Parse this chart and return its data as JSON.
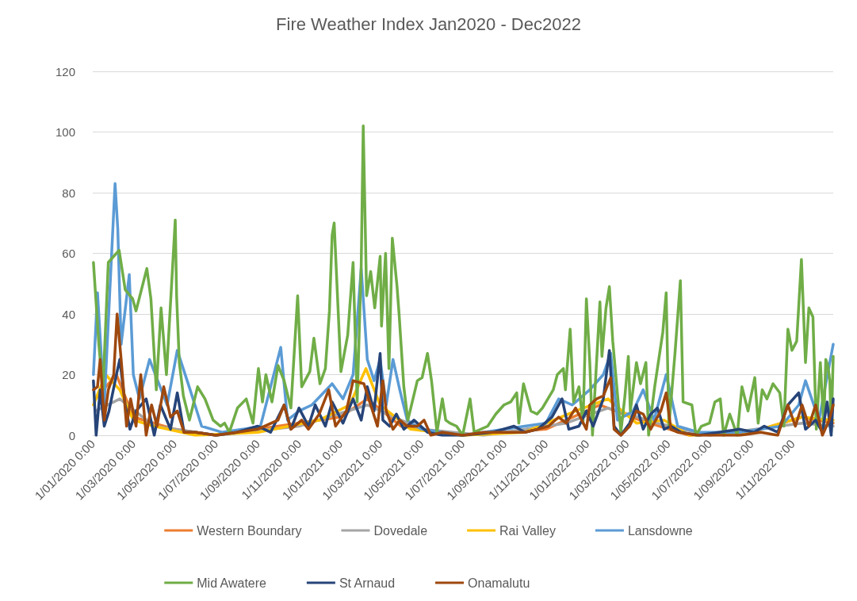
{
  "chart_data": {
    "type": "line",
    "title": "Fire Weather Index Jan2020 - Dec2022",
    "ylim": [
      0,
      120
    ],
    "yticks": [
      0,
      20,
      40,
      60,
      80,
      100,
      120
    ],
    "xlim": [
      "2020-01-01",
      "2022-12-31"
    ],
    "xticks": [
      {
        "value": "2020-01-01",
        "label": "1/01/2020 0:00"
      },
      {
        "value": "2020-03-01",
        "label": "1/03/2020 0:00"
      },
      {
        "value": "2020-05-01",
        "label": "1/05/2020 0:00"
      },
      {
        "value": "2020-07-01",
        "label": "1/07/2020 0:00"
      },
      {
        "value": "2020-09-01",
        "label": "1/09/2020 0:00"
      },
      {
        "value": "2020-11-01",
        "label": "1/11/2020 0:00"
      },
      {
        "value": "2021-01-01",
        "label": "1/01/2021 0:00"
      },
      {
        "value": "2021-03-01",
        "label": "1/03/2021 0:00"
      },
      {
        "value": "2021-05-01",
        "label": "1/05/2021 0:00"
      },
      {
        "value": "2021-07-01",
        "label": "1/07/2021 0:00"
      },
      {
        "value": "2021-09-01",
        "label": "1/09/2021 0:00"
      },
      {
        "value": "2021-11-01",
        "label": "1/11/2021 0:00"
      },
      {
        "value": "2022-01-01",
        "label": "1/01/2022 0:00"
      },
      {
        "value": "2022-03-01",
        "label": "1/03/2022 0:00"
      },
      {
        "value": "2022-05-01",
        "label": "1/05/2022 0:00"
      },
      {
        "value": "2022-07-01",
        "label": "1/07/2022 0:00"
      },
      {
        "value": "2022-09-01",
        "label": "1/09/2022 0:00"
      },
      {
        "value": "2022-11-01",
        "label": "1/11/2022 0:00"
      }
    ],
    "grid": "y",
    "legend": "bottom",
    "marker": "none",
    "series": [
      {
        "name": "Western Boundary",
        "color": "#ed7d31",
        "x": [
          "2020-01-05",
          "2020-02-05",
          "2020-03-01",
          "2020-05-01",
          "2020-07-01",
          "2020-10-01",
          "2021-01-01",
          "2021-02-10",
          "2021-04-01",
          "2021-07-01",
          "2021-11-01",
          "2022-01-20",
          "2022-03-20",
          "2022-06-01",
          "2022-09-01",
          "2022-11-15",
          "2022-12-31"
        ],
        "values": [
          12,
          20,
          6,
          2,
          0,
          3,
          6,
          12,
          3,
          0,
          2,
          10,
          5,
          0,
          1,
          6,
          4
        ]
      },
      {
        "name": "Dovedale",
        "color": "#a5a5a5",
        "x": [
          "2020-01-05",
          "2020-02-10",
          "2020-04-01",
          "2020-07-01",
          "2020-11-01",
          "2021-02-10",
          "2021-05-01",
          "2021-08-01",
          "2021-12-01",
          "2022-02-01",
          "2022-04-15",
          "2022-07-01",
          "2022-11-15",
          "2022-12-31"
        ],
        "values": [
          8,
          12,
          3,
          0,
          3,
          10,
          2,
          0,
          4,
          9,
          4,
          0,
          4,
          3
        ]
      },
      {
        "name": "Rai Valley",
        "color": "#ffc000",
        "x": [
          "2020-01-02",
          "2020-01-20",
          "2020-02-10",
          "2020-03-01",
          "2020-04-01",
          "2020-06-01",
          "2020-09-01",
          "2020-12-01",
          "2021-01-15",
          "2021-02-08",
          "2021-03-01",
          "2021-04-15",
          "2021-07-01",
          "2021-10-01",
          "2021-12-15",
          "2022-02-01",
          "2022-03-15",
          "2022-04-25",
          "2022-06-01",
          "2022-09-01",
          "2022-11-15",
          "2022-12-31"
        ],
        "values": [
          10,
          20,
          15,
          5,
          3,
          0,
          1,
          5,
          10,
          22,
          10,
          2,
          0,
          1,
          8,
          12,
          4,
          5,
          0,
          1,
          6,
          5
        ]
      },
      {
        "name": "Lansdowne",
        "color": "#5b9bd5",
        "x": [
          "2020-01-02",
          "2020-01-08",
          "2020-01-18",
          "2020-02-03",
          "2020-02-07",
          "2020-02-12",
          "2020-02-24",
          "2020-03-01",
          "2020-03-10",
          "2020-03-25",
          "2020-04-20",
          "2020-05-05",
          "2020-05-24",
          "2020-06-10",
          "2020-07-10",
          "2020-08-10",
          "2020-09-05",
          "2020-10-05",
          "2020-10-15",
          "2020-11-01",
          "2020-11-20",
          "2020-12-20",
          "2021-01-05",
          "2021-01-20",
          "2021-02-01",
          "2021-02-10",
          "2021-02-20",
          "2021-03-01",
          "2021-03-10",
          "2021-03-20",
          "2021-03-30",
          "2021-04-10",
          "2021-05-01",
          "2021-06-01",
          "2021-07-01",
          "2021-08-01",
          "2021-09-01",
          "2021-10-01",
          "2021-11-01",
          "2021-11-20",
          "2021-12-10",
          "2022-01-05",
          "2022-01-25",
          "2022-02-05",
          "2022-02-15",
          "2022-03-10",
          "2022-03-25",
          "2022-04-10",
          "2022-04-28",
          "2022-05-15",
          "2022-06-15",
          "2022-07-15",
          "2022-08-15",
          "2022-09-15",
          "2022-10-15",
          "2022-11-10",
          "2022-11-20",
          "2022-12-10",
          "2022-12-31"
        ],
        "values": [
          20,
          47,
          10,
          83,
          68,
          30,
          53,
          20,
          12,
          25,
          10,
          28,
          15,
          3,
          1,
          2,
          3,
          29,
          5,
          8,
          10,
          17,
          12,
          20,
          55,
          25,
          18,
          25,
          10,
          25,
          15,
          5,
          2,
          1,
          0,
          1,
          2,
          3,
          4,
          12,
          10,
          15,
          20,
          27,
          5,
          8,
          15,
          5,
          20,
          3,
          1,
          1,
          1,
          2,
          3,
          10,
          18,
          5,
          30
        ]
      },
      {
        "name": "Mid Awatere",
        "color": "#70ad47",
        "x": [
          "2020-01-02",
          "2020-01-10",
          "2020-01-16",
          "2020-01-24",
          "2020-02-09",
          "2020-02-18",
          "2020-02-29",
          "2020-03-05",
          "2020-03-21",
          "2020-03-27",
          "2020-04-04",
          "2020-04-11",
          "2020-04-19",
          "2020-05-02",
          "2020-05-04",
          "2020-05-08",
          "2020-05-14",
          "2020-05-23",
          "2020-06-04",
          "2020-06-15",
          "2020-06-27",
          "2020-07-08",
          "2020-07-14",
          "2020-07-21",
          "2020-08-02",
          "2020-08-15",
          "2020-08-25",
          "2020-09-02",
          "2020-09-08",
          "2020-09-13",
          "2020-09-22",
          "2020-10-01",
          "2020-10-10",
          "2020-10-20",
          "2020-10-30",
          "2020-11-05",
          "2020-11-17",
          "2020-11-23",
          "2020-12-02",
          "2020-12-10",
          "2020-12-16",
          "2020-12-20",
          "2020-12-23",
          "2021-01-02",
          "2021-01-12",
          "2021-01-20",
          "2021-01-26",
          "2021-02-01",
          "2021-02-04",
          "2021-02-09",
          "2021-02-15",
          "2021-02-21",
          "2021-03-01",
          "2021-03-03",
          "2021-03-09",
          "2021-03-14",
          "2021-03-19",
          "2021-03-26",
          "2021-03-29",
          "2021-04-05",
          "2021-04-11",
          "2021-04-25",
          "2021-05-02",
          "2021-05-10",
          "2021-05-16",
          "2021-05-24",
          "2021-06-01",
          "2021-06-06",
          "2021-06-12",
          "2021-06-22",
          "2021-07-01",
          "2021-07-12",
          "2021-07-18",
          "2021-08-07",
          "2021-08-19",
          "2021-08-31",
          "2021-09-10",
          "2021-09-19",
          "2021-09-22",
          "2021-09-29",
          "2021-10-10",
          "2021-10-19",
          "2021-10-27",
          "2021-11-04",
          "2021-11-12",
          "2021-11-18",
          "2021-11-27",
          "2021-11-30",
          "2021-12-07",
          "2021-12-12",
          "2021-12-20",
          "2021-12-26",
          "2021-12-31",
          "2022-01-05",
          "2022-01-09",
          "2022-01-20",
          "2022-01-23",
          "2022-01-29",
          "2022-02-03",
          "2022-02-08",
          "2022-02-20",
          "2022-02-26",
          "2022-03-03",
          "2022-03-06",
          "2022-03-15",
          "2022-03-21",
          "2022-03-29",
          "2022-04-02",
          "2022-04-11",
          "2022-04-23",
          "2022-04-28",
          "2022-05-02",
          "2022-05-11",
          "2022-05-19",
          "2022-05-23",
          "2022-06-05",
          "2022-06-11",
          "2022-06-19",
          "2022-07-01",
          "2022-07-09",
          "2022-07-17",
          "2022-07-22",
          "2022-07-31",
          "2022-08-11",
          "2022-08-18",
          "2022-08-27",
          "2022-09-06",
          "2022-09-11",
          "2022-09-17",
          "2022-09-24",
          "2022-10-03",
          "2022-10-13",
          "2022-10-19",
          "2022-10-25",
          "2022-10-31",
          "2022-11-07",
          "2022-11-14",
          "2022-11-20",
          "2022-11-25",
          "2022-12-01",
          "2022-12-06",
          "2022-12-12",
          "2022-12-17",
          "2022-12-20",
          "2022-12-23",
          "2022-12-26",
          "2022-12-28",
          "2022-12-31"
        ],
        "values": [
          57,
          30,
          15,
          57,
          61,
          48,
          45,
          41,
          55,
          45,
          15,
          42,
          20,
          71,
          46,
          24,
          13,
          5,
          16,
          12,
          5,
          3,
          4,
          1,
          9,
          12,
          4,
          22,
          11,
          20,
          11,
          23,
          18,
          9,
          46,
          16,
          21,
          32,
          17,
          22,
          41,
          66,
          70,
          21,
          33,
          57,
          11,
          56,
          102,
          46,
          54,
          42,
          59,
          36,
          60,
          22,
          65,
          49,
          40,
          16,
          5,
          18,
          19,
          27,
          18,
          1,
          12,
          5,
          4,
          3,
          0,
          12,
          1,
          3,
          7,
          10,
          11,
          14,
          4,
          17,
          8,
          7,
          9,
          12,
          15,
          20,
          22,
          15,
          35,
          11,
          16,
          4,
          45,
          24,
          0,
          44,
          26,
          42,
          49,
          31,
          1,
          13,
          26,
          8,
          24,
          17,
          24,
          0,
          16,
          34,
          47,
          3,
          27,
          51,
          11,
          10,
          0,
          3,
          4,
          11,
          12,
          0,
          7,
          0,
          16,
          8,
          19,
          4,
          15,
          12,
          17,
          14,
          3,
          35,
          28,
          31,
          58,
          24,
          42,
          39,
          2,
          24,
          3,
          25,
          23,
          18,
          1,
          26
        ]
      },
      {
        "name": "St Arnaud",
        "color": "#264478",
        "x": [
          "2020-01-02",
          "2020-01-06",
          "2020-01-12",
          "2020-01-18",
          "2020-01-25",
          "2020-02-05",
          "2020-02-10",
          "2020-02-18",
          "2020-02-25",
          "2020-03-05",
          "2020-03-20",
          "2020-04-01",
          "2020-04-10",
          "2020-04-25",
          "2020-05-05",
          "2020-05-15",
          "2020-06-01",
          "2020-07-01",
          "2020-08-01",
          "2020-09-01",
          "2020-09-20",
          "2020-10-10",
          "2020-10-20",
          "2020-11-01",
          "2020-11-15",
          "2020-11-25",
          "2020-12-10",
          "2020-12-20",
          "2021-01-05",
          "2021-01-20",
          "2021-02-01",
          "2021-02-10",
          "2021-02-20",
          "2021-03-01",
          "2021-03-05",
          "2021-03-15",
          "2021-03-25",
          "2021-04-05",
          "2021-04-20",
          "2021-05-10",
          "2021-06-01",
          "2021-07-01",
          "2021-08-15",
          "2021-09-15",
          "2021-10-01",
          "2021-10-20",
          "2021-11-10",
          "2021-11-25",
          "2021-12-05",
          "2021-12-20",
          "2021-12-31",
          "2022-01-10",
          "2022-01-25",
          "2022-02-03",
          "2022-02-10",
          "2022-02-20",
          "2022-03-05",
          "2022-03-15",
          "2022-03-25",
          "2022-04-05",
          "2022-04-15",
          "2022-04-25",
          "2022-05-05",
          "2022-05-20",
          "2022-06-15",
          "2022-07-15",
          "2022-08-15",
          "2022-09-05",
          "2022-09-20",
          "2022-10-10",
          "2022-10-25",
          "2022-11-10",
          "2022-11-20",
          "2022-12-05",
          "2022-12-15",
          "2022-12-22",
          "2022-12-28",
          "2022-12-31"
        ],
        "values": [
          18,
          0,
          15,
          3,
          8,
          20,
          25,
          10,
          2,
          8,
          12,
          0,
          10,
          2,
          14,
          1,
          1,
          0,
          1,
          3,
          1,
          10,
          2,
          9,
          3,
          10,
          3,
          11,
          4,
          12,
          5,
          16,
          8,
          27,
          5,
          3,
          7,
          2,
          5,
          1,
          0,
          0,
          1,
          3,
          1,
          2,
          6,
          12,
          2,
          3,
          8,
          3,
          12,
          28,
          3,
          0,
          4,
          10,
          2,
          7,
          9,
          2,
          3,
          1,
          0,
          1,
          2,
          1,
          3,
          1,
          10,
          14,
          2,
          5,
          1,
          11,
          0,
          12
        ]
      },
      {
        "name": "Onamalutu",
        "color": "#9e480e",
        "x": [
          "2020-01-02",
          "2020-01-08",
          "2020-01-12",
          "2020-01-18",
          "2020-01-24",
          "2020-02-01",
          "2020-02-06",
          "2020-02-12",
          "2020-02-20",
          "2020-02-26",
          "2020-03-05",
          "2020-03-12",
          "2020-03-20",
          "2020-03-28",
          "2020-04-05",
          "2020-04-15",
          "2020-04-25",
          "2020-05-05",
          "2020-05-15",
          "2020-06-01",
          "2020-07-01",
          "2020-08-01",
          "2020-09-01",
          "2020-10-01",
          "2020-10-10",
          "2020-10-20",
          "2020-11-05",
          "2020-11-15",
          "2020-12-01",
          "2020-12-15",
          "2020-12-25",
          "2021-01-10",
          "2021-01-20",
          "2021-02-05",
          "2021-02-15",
          "2021-02-25",
          "2021-03-05",
          "2021-03-10",
          "2021-03-20",
          "2021-03-30",
          "2021-04-10",
          "2021-04-25",
          "2021-05-05",
          "2021-05-15",
          "2021-06-01",
          "2021-07-01",
          "2021-08-01",
          "2021-09-01",
          "2021-10-01",
          "2021-10-20",
          "2021-11-05",
          "2021-11-20",
          "2021-12-01",
          "2021-12-15",
          "2021-12-31",
          "2022-01-05",
          "2022-01-15",
          "2022-01-25",
          "2022-02-05",
          "2022-02-10",
          "2022-02-20",
          "2022-03-05",
          "2022-03-15",
          "2022-03-25",
          "2022-04-05",
          "2022-04-20",
          "2022-04-28",
          "2022-05-05",
          "2022-05-15",
          "2022-06-15",
          "2022-07-15",
          "2022-08-15",
          "2022-09-15",
          "2022-10-10",
          "2022-10-25",
          "2022-11-05",
          "2022-11-15",
          "2022-11-25",
          "2022-12-05",
          "2022-12-15",
          "2022-12-25",
          "2022-12-31"
        ],
        "values": [
          15,
          16,
          25,
          5,
          15,
          20,
          40,
          25,
          3,
          12,
          3,
          20,
          0,
          10,
          3,
          16,
          6,
          8,
          1,
          1,
          0,
          1,
          2,
          5,
          10,
          2,
          5,
          2,
          7,
          15,
          3,
          8,
          18,
          17,
          10,
          3,
          18,
          8,
          2,
          5,
          3,
          3,
          5,
          0,
          1,
          0,
          1,
          1,
          1,
          2,
          3,
          6,
          4,
          9,
          2,
          10,
          12,
          13,
          19,
          2,
          0,
          3,
          8,
          7,
          2,
          8,
          14,
          2,
          1,
          0,
          0,
          0,
          1,
          0,
          10,
          3,
          10,
          3,
          10,
          0,
          5,
          10
        ]
      }
    ]
  }
}
